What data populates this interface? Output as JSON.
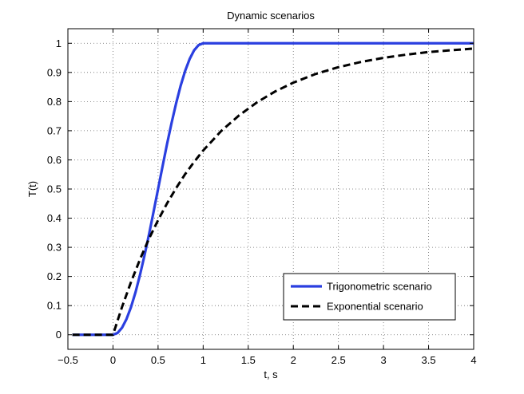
{
  "chart_data": {
    "type": "line",
    "title": "Dynamic scenarios",
    "xlabel": "t, s",
    "ylabel": "T(t)",
    "xlim": [
      -0.5,
      4
    ],
    "ylim": [
      -0.05,
      1.05
    ],
    "grid": true,
    "legend_position": "bottom-right",
    "xticks": [
      -0.5,
      0,
      0.5,
      1,
      1.5,
      2,
      2.5,
      3,
      3.5,
      4
    ],
    "xtick_labels": [
      "−0.5",
      "0",
      "0.5",
      "1",
      "1.5",
      "2",
      "2.5",
      "3",
      "3.5",
      "4"
    ],
    "yticks": [
      0,
      0.1,
      0.2,
      0.3,
      0.4,
      0.5,
      0.6,
      0.7,
      0.8,
      0.9,
      1
    ],
    "ytick_labels": [
      "0",
      "0.1",
      "0.2",
      "0.3",
      "0.4",
      "0.5",
      "0.6",
      "0.7",
      "0.8",
      "0.9",
      "1"
    ],
    "series": [
      {
        "name": "Trigonometric scenario",
        "color": "#2a3fe0",
        "line_style": "solid",
        "x": [
          -0.45,
          0,
          0.05,
          0.1,
          0.15,
          0.2,
          0.25,
          0.3,
          0.35,
          0.4,
          0.45,
          0.5,
          0.55,
          0.6,
          0.65,
          0.7,
          0.75,
          0.8,
          0.85,
          0.9,
          0.95,
          1,
          1.5,
          2,
          2.5,
          3,
          3.5,
          4
        ],
        "y": [
          0,
          0,
          0.006,
          0.024,
          0.054,
          0.095,
          0.146,
          0.206,
          0.273,
          0.345,
          0.422,
          0.5,
          0.578,
          0.655,
          0.727,
          0.794,
          0.854,
          0.905,
          0.946,
          0.976,
          0.994,
          1,
          1,
          1,
          1,
          1,
          1,
          1
        ]
      },
      {
        "name": "Exponential scenario",
        "color": "#000000",
        "line_style": "dashed",
        "x": [
          -0.45,
          0,
          0.1,
          0.2,
          0.3,
          0.4,
          0.5,
          0.6,
          0.7,
          0.8,
          0.9,
          1,
          1.2,
          1.4,
          1.6,
          1.8,
          2,
          2.25,
          2.5,
          2.75,
          3,
          3.25,
          3.5,
          3.75,
          4
        ],
        "y": [
          0,
          0,
          0.095,
          0.181,
          0.259,
          0.33,
          0.393,
          0.451,
          0.503,
          0.551,
          0.593,
          0.632,
          0.699,
          0.753,
          0.798,
          0.835,
          0.865,
          0.895,
          0.918,
          0.936,
          0.95,
          0.961,
          0.97,
          0.976,
          0.982
        ]
      }
    ]
  }
}
